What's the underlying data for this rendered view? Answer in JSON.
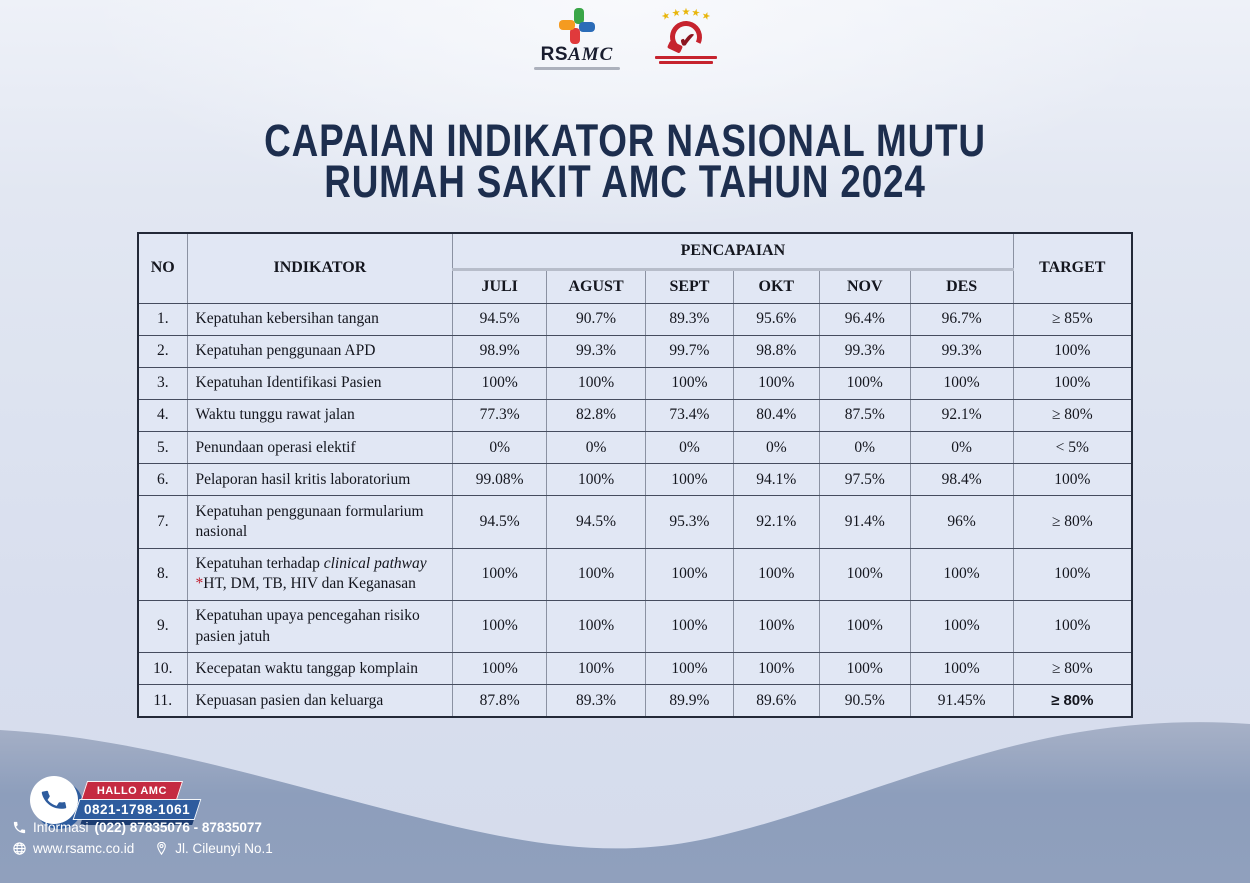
{
  "page": {
    "title_line1": "CAPAIAN INDIKATOR NASIONAL MUTU",
    "title_line2": "RUMAH SAKIT AMC TAHUN 2024"
  },
  "logos": {
    "rsamc_rs": "RS",
    "rsamc_amc": "AMC",
    "kars_stars": "★"
  },
  "table": {
    "headers": {
      "no": "NO",
      "indikator": "INDIKATOR",
      "pencapaian": "PENCAPAIAN",
      "target": "TARGET",
      "months": [
        "JULI",
        "AGUST",
        "SEPT",
        "OKT",
        "NOV",
        "DES"
      ]
    },
    "rows": [
      {
        "no": "1.",
        "indikator": [
          {
            "t": "Kepatuhan kebersihan tangan"
          }
        ],
        "values": [
          "94.5%",
          "90.7%",
          "89.3%",
          "95.6%",
          "96.4%",
          "96.7%"
        ],
        "target": "≥ 85%"
      },
      {
        "no": "2.",
        "indikator": [
          {
            "t": "Kepatuhan penggunaan APD"
          }
        ],
        "values": [
          "98.9%",
          "99.3%",
          "99.7%",
          "98.8%",
          "99.3%",
          "99.3%"
        ],
        "target": "100%"
      },
      {
        "no": "3.",
        "indikator": [
          {
            "t": "Kepatuhan Identifikasi Pasien"
          }
        ],
        "values": [
          "100%",
          "100%",
          "100%",
          "100%",
          "100%",
          "100%"
        ],
        "target": "100%"
      },
      {
        "no": "4.",
        "indikator": [
          {
            "t": "Waktu tunggu rawat jalan"
          }
        ],
        "values": [
          "77.3%",
          "82.8%",
          "73.4%",
          "80.4%",
          "87.5%",
          "92.1%"
        ],
        "target": "≥ 80%"
      },
      {
        "no": "5.",
        "indikator": [
          {
            "t": "Penundaan operasi elektif"
          }
        ],
        "values": [
          "0%",
          "0%",
          "0%",
          "0%",
          "0%",
          "0%"
        ],
        "target": "< 5%"
      },
      {
        "no": "6.",
        "indikator": [
          {
            "t": "Pelaporan hasil kritis laboratorium"
          }
        ],
        "values": [
          "99.08%",
          "100%",
          "100%",
          "94.1%",
          "97.5%",
          "98.4%"
        ],
        "target": "100%"
      },
      {
        "no": "7.",
        "indikator": [
          {
            "t": "Kepatuhan penggunaan formularium nasional"
          }
        ],
        "values": [
          "94.5%",
          "94.5%",
          "95.3%",
          "92.1%",
          "91.4%",
          "96%"
        ],
        "target": "≥ 80%"
      },
      {
        "no": "8.",
        "indikator": [
          {
            "t": "Kepatuhan terhadap "
          },
          {
            "t": "clinical pathway",
            "i": true
          },
          {
            "t": " "
          },
          {
            "t": "*",
            "c": "#c01e2e"
          },
          {
            "t": "HT, DM, TB, HIV dan Keganasan"
          }
        ],
        "values": [
          "100%",
          "100%",
          "100%",
          "100%",
          "100%",
          "100%"
        ],
        "target": "100%"
      },
      {
        "no": "9.",
        "indikator": [
          {
            "t": "Kepatuhan upaya pencegahan risiko pasien jatuh"
          }
        ],
        "values": [
          "100%",
          "100%",
          "100%",
          "100%",
          "100%",
          "100%"
        ],
        "target": "100%"
      },
      {
        "no": "10.",
        "indikator": [
          {
            "t": "Kecepatan waktu tanggap komplain"
          }
        ],
        "values": [
          "100%",
          "100%",
          "100%",
          "100%",
          "100%",
          "100%"
        ],
        "target": "≥ 80%"
      },
      {
        "no": "11.",
        "indikator": [
          {
            "t": "Kepuasan pasien dan keluarga"
          }
        ],
        "values": [
          "87.8%",
          "89.3%",
          "89.9%",
          "89.6%",
          "90.5%",
          "91.45%"
        ],
        "target": "≥ 80%",
        "target_bold": true
      }
    ]
  },
  "footer": {
    "hallo_label": "HALLO AMC",
    "hallo_number": "0821-1798-1061",
    "info_label": "Informasi",
    "info_numbers": "(022) 87835076 - 87835077",
    "website": "www.rsamc.co.id",
    "address": "Jl. Cileunyi No.1"
  },
  "colors": {
    "title_navy": "#1d2e4e",
    "table_cell_bg": "#e1e7f4",
    "badge_red": "#c52a41",
    "badge_blue": "#2e5c9e",
    "wave_slate": "#8d9ebc",
    "asterisk_red": "#c01e2e",
    "star_gold": "#e8b50a"
  }
}
